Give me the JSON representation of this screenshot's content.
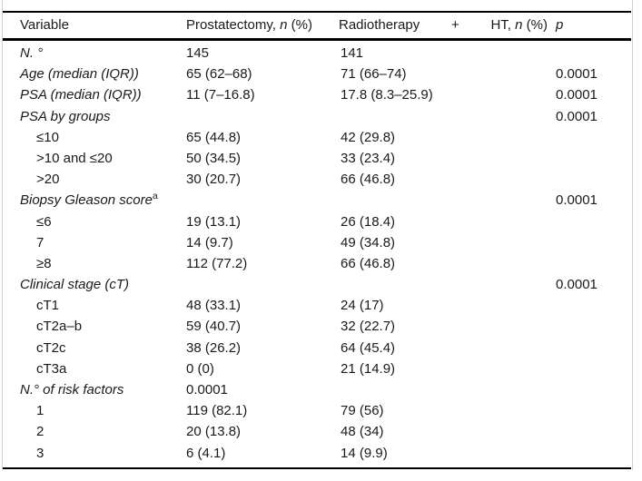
{
  "table": {
    "header": {
      "variable": "Variable",
      "prostatectomy": {
        "prefix": "Prostatectomy,",
        "n": "n",
        "suffix": "(%)"
      },
      "radiotherapy": {
        "word1": "Radiotherapy",
        "plus": "+",
        "ht": "HT,",
        "n": "n",
        "suffix": "(%)"
      },
      "p": "p"
    },
    "rows": [
      {
        "label": "N. °",
        "italic": true,
        "prostatectomy": "145",
        "radiotherapy": "141"
      },
      {
        "label": "Age (median (IQR))",
        "italic": true,
        "prostatectomy": "65 (62–68)",
        "radiotherapy": "71 (66–74)",
        "p": "0.0001"
      },
      {
        "label": "PSA (median (IQR))",
        "italic": true,
        "prostatectomy": "11 (7–16.8)",
        "radiotherapy": "17.8 (8.3–25.9)",
        "p": "0.0001"
      },
      {
        "label": "PSA by groups",
        "italic": true,
        "p": "0.0001"
      },
      {
        "label": "≤10",
        "indent": true,
        "prostatectomy": "65 (44.8)",
        "radiotherapy": "42 (29.8)"
      },
      {
        "label": ">10 and ≤20",
        "indent": true,
        "prostatectomy": "50 (34.5)",
        "radiotherapy": "33 (23.4)"
      },
      {
        "label": ">20",
        "indent": true,
        "prostatectomy": "30 (20.7)",
        "radiotherapy": "66 (46.8)"
      },
      {
        "label": "Biopsy Gleason score",
        "sup": "a",
        "italic": true,
        "p": "0.0001"
      },
      {
        "label": "≤6",
        "indent": true,
        "prostatectomy": "19 (13.1)",
        "radiotherapy": "26 (18.4)"
      },
      {
        "label": "7",
        "indent": true,
        "prostatectomy": "14 (9.7)",
        "radiotherapy": "49 (34.8)"
      },
      {
        "label": "≥8",
        "indent": true,
        "prostatectomy": "112 (77.2)",
        "radiotherapy": "66 (46.8)"
      },
      {
        "label": "Clinical stage (cT)",
        "italic": true,
        "p": "0.0001"
      },
      {
        "label": "cT1",
        "indent": true,
        "prostatectomy": "48 (33.1)",
        "radiotherapy": "24 (17)"
      },
      {
        "label": "cT2a–b",
        "indent": true,
        "prostatectomy": "59 (40.7)",
        "radiotherapy": "32 (22.7)"
      },
      {
        "label": "cT2c",
        "indent": true,
        "prostatectomy": "38 (26.2)",
        "radiotherapy": "64 (45.4)"
      },
      {
        "label": "cT3a",
        "indent": true,
        "prostatectomy": "0 (0)",
        "radiotherapy": "21 (14.9)"
      },
      {
        "label": "N.° of risk factors",
        "italic": true,
        "prostatectomy": "0.0001"
      },
      {
        "label": "1",
        "indent": true,
        "prostatectomy": "119 (82.1)",
        "radiotherapy": "79 (56)"
      },
      {
        "label": "2",
        "indent": true,
        "prostatectomy": "20 (13.8)",
        "radiotherapy": "48 (34)"
      },
      {
        "label": "3",
        "indent": true,
        "prostatectomy": "6 (4.1)",
        "radiotherapy": "14 (9.9)"
      }
    ]
  }
}
